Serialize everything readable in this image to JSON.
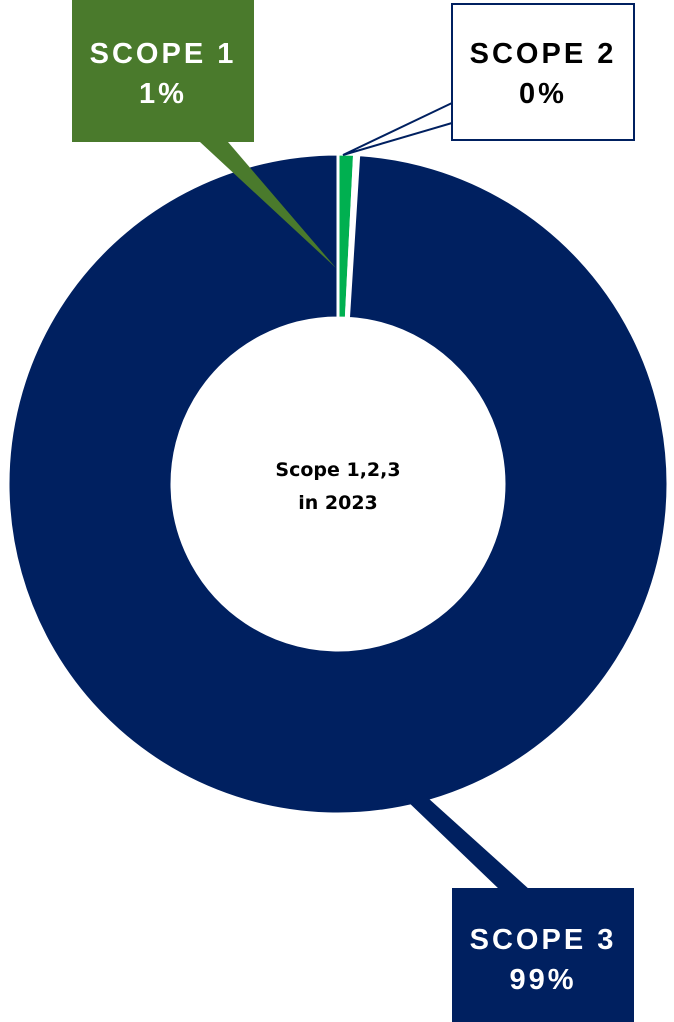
{
  "chart_data": {
    "type": "pie",
    "variant": "donut",
    "center_text": [
      "Scope 1,2,3",
      "in 2023"
    ],
    "slices": [
      {
        "name": "SCOPE 1",
        "label": "1%",
        "value": 0.8,
        "color": "#00b050"
      },
      {
        "name": "SCOPE 2",
        "label": "0%",
        "value": 0.2,
        "color": "#ffffff"
      },
      {
        "name": "SCOPE 3",
        "label": "99%",
        "value": 99.0,
        "color": "#002060"
      }
    ],
    "callouts": {
      "scope1": {
        "fill": "#4a7a2c",
        "text_color": "#ffffff"
      },
      "scope2": {
        "fill": "#ffffff",
        "text_color": "#000000",
        "border": "#002060"
      },
      "scope3": {
        "fill": "#002060",
        "text_color": "#ffffff"
      }
    }
  }
}
